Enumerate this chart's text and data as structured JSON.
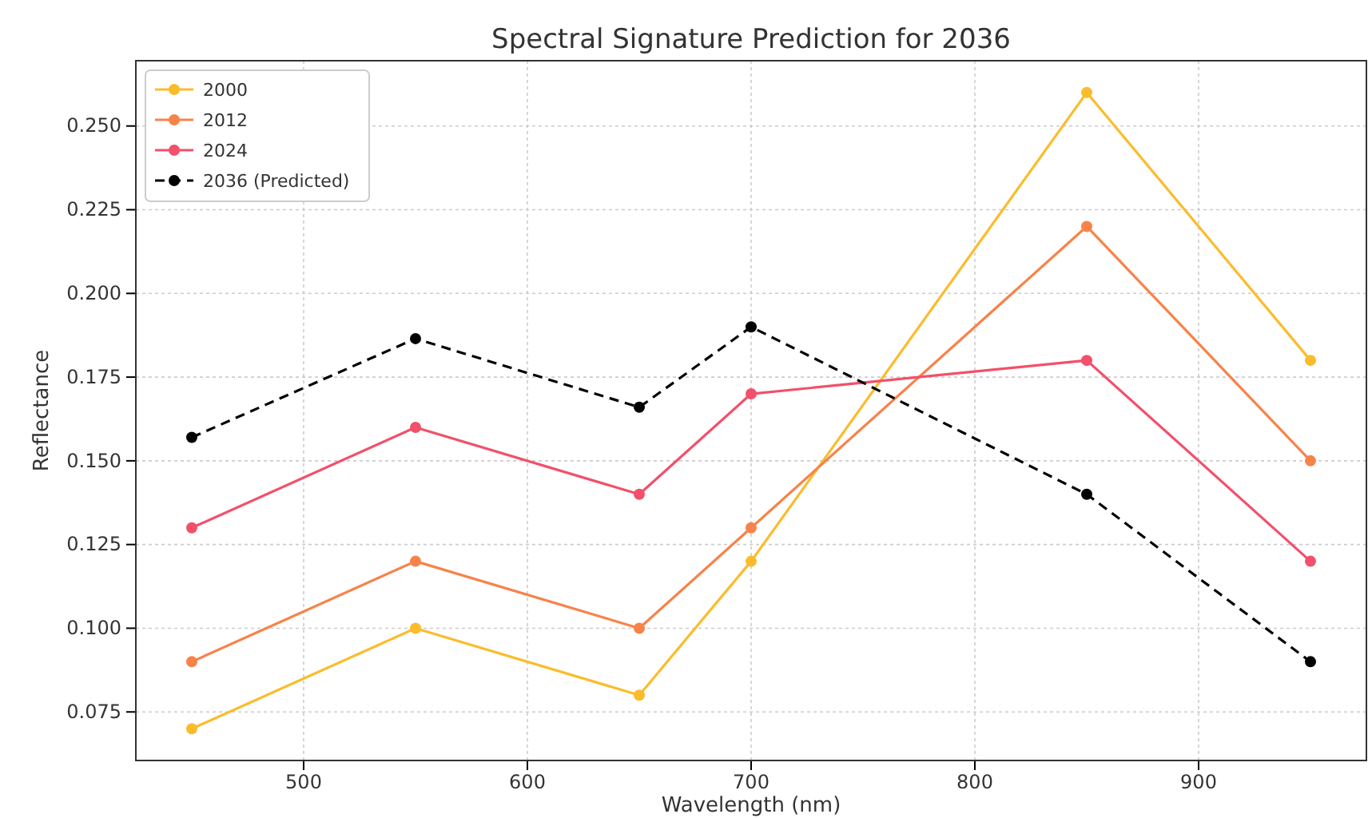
{
  "chart_data": {
    "type": "line",
    "title": "Spectral Signature Prediction for 2036",
    "xlabel": "Wavelength (nm)",
    "ylabel": "Reflectance",
    "x": [
      450,
      550,
      650,
      700,
      850,
      950
    ],
    "series": [
      {
        "name": "2000",
        "color": "#fbbc2c",
        "values": [
          0.07,
          0.1,
          0.08,
          0.12,
          0.26,
          0.18
        ]
      },
      {
        "name": "2012",
        "color": "#f7834a",
        "values": [
          0.09,
          0.12,
          0.1,
          0.13,
          0.22,
          0.15
        ]
      },
      {
        "name": "2024",
        "color": "#f2506b",
        "values": [
          0.13,
          0.16,
          0.14,
          0.17,
          0.18,
          0.12
        ]
      },
      {
        "name": "2036 (Predicted)",
        "color": "#000000",
        "line_style": "dashed",
        "values": [
          0.157,
          0.1865,
          0.166,
          0.19,
          0.14,
          0.09
        ]
      }
    ],
    "xlim": [
      425,
      975
    ],
    "xticks": [
      500,
      600,
      700,
      800,
      900
    ],
    "ylim": [
      0.0605,
      0.2695
    ],
    "yticks": [
      {
        "value": 0.075,
        "label": "0.075"
      },
      {
        "value": 0.1,
        "label": "0.100"
      },
      {
        "value": 0.125,
        "label": "0.125"
      },
      {
        "value": 0.15,
        "label": "0.150"
      },
      {
        "value": 0.175,
        "label": "0.175"
      },
      {
        "value": 0.2,
        "label": "0.200"
      },
      {
        "value": 0.225,
        "label": "0.225"
      },
      {
        "value": 0.25,
        "label": "0.250"
      }
    ],
    "grid": true,
    "legend": "top left",
    "marker": "circle",
    "line_style": "solid"
  }
}
